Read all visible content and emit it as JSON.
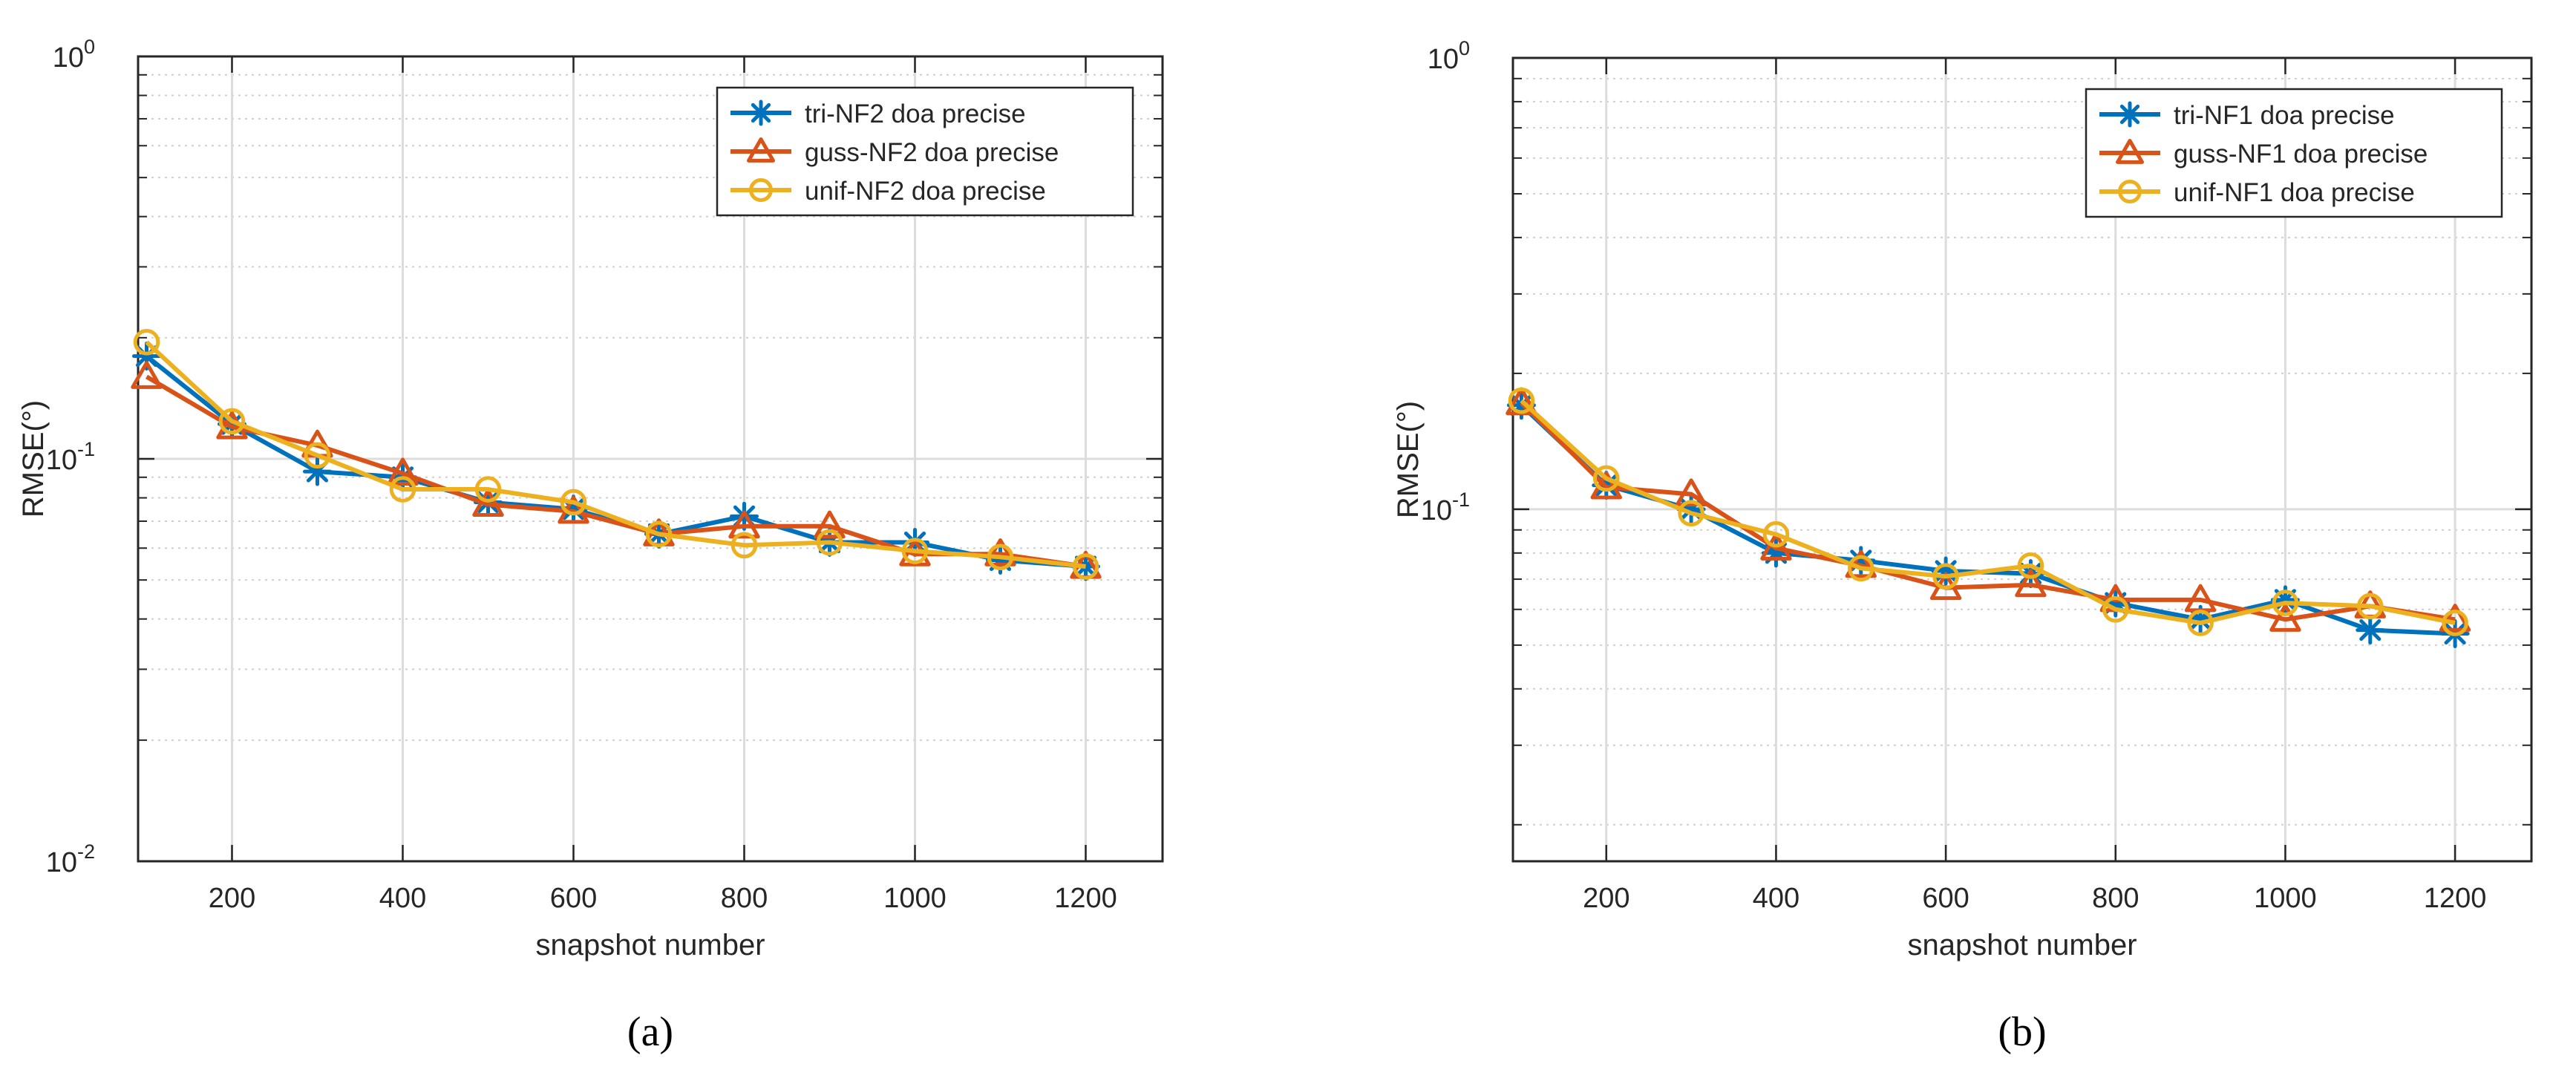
{
  "chart_data": [
    {
      "type": "line",
      "panel_label": "(a)",
      "xlabel": "snapshot number",
      "ylabel": "RMSE(°)",
      "yscale": "log",
      "xlim": [
        90,
        1290
      ],
      "ylim": [
        0.01,
        1
      ],
      "xticks": [
        200,
        400,
        600,
        800,
        1000,
        1200
      ],
      "yticks": [
        {
          "v": 0.01,
          "exp": "-2"
        },
        {
          "v": 0.1,
          "exp": "-1"
        },
        {
          "v": 1,
          "exp": "0"
        }
      ],
      "grid": true,
      "legend_position": "top-right",
      "x": [
        100,
        200,
        300,
        400,
        500,
        600,
        700,
        800,
        900,
        1000,
        1100,
        1200
      ],
      "series": [
        {
          "name": "tri-NF2 doa precise",
          "color": "#0072BD",
          "marker": "star",
          "values": [
            0.18,
            0.122,
            0.093,
            0.09,
            0.078,
            0.075,
            0.065,
            0.072,
            0.062,
            0.062,
            0.056,
            0.054
          ]
        },
        {
          "name": "guss-NF2 doa precise",
          "color": "#D95319",
          "marker": "triangle",
          "values": [
            0.16,
            0.12,
            0.108,
            0.092,
            0.077,
            0.074,
            0.065,
            0.068,
            0.068,
            0.058,
            0.058,
            0.054
          ]
        },
        {
          "name": "unif-NF2 doa precise",
          "color": "#EDB120",
          "marker": "circle",
          "values": [
            0.195,
            0.124,
            0.102,
            0.084,
            0.084,
            0.078,
            0.065,
            0.061,
            0.062,
            0.059,
            0.057,
            0.054
          ]
        }
      ]
    },
    {
      "type": "line",
      "panel_label": "(b)",
      "xlabel": "snapshot number",
      "ylabel": "RMSE(°)",
      "yscale": "log",
      "xlim": [
        90,
        1290
      ],
      "ylim": [
        0.0166,
        1
      ],
      "xticks": [
        200,
        400,
        600,
        800,
        1000,
        1200
      ],
      "yticks": [
        {
          "v": 0.1,
          "exp": "-1"
        },
        {
          "v": 1,
          "exp": "0"
        }
      ],
      "grid": true,
      "legend_position": "top-right",
      "x": [
        100,
        200,
        300,
        400,
        500,
        600,
        700,
        800,
        900,
        1000,
        1100,
        1200
      ],
      "series": [
        {
          "name": "tri-NF1 doa precise",
          "color": "#0072BD",
          "marker": "star",
          "values": [
            0.17,
            0.113,
            0.1,
            0.08,
            0.077,
            0.073,
            0.072,
            0.062,
            0.057,
            0.063,
            0.054,
            0.053
          ]
        },
        {
          "name": "guss-NF1 doa precise",
          "color": "#D95319",
          "marker": "triangle",
          "values": [
            0.172,
            0.112,
            0.108,
            0.082,
            0.075,
            0.067,
            0.068,
            0.063,
            0.063,
            0.057,
            0.061,
            0.057
          ]
        },
        {
          "name": "unif-NF1 doa precise",
          "color": "#EDB120",
          "marker": "circle",
          "values": [
            0.174,
            0.117,
            0.098,
            0.088,
            0.074,
            0.071,
            0.075,
            0.06,
            0.056,
            0.062,
            0.061,
            0.056
          ]
        }
      ]
    }
  ]
}
